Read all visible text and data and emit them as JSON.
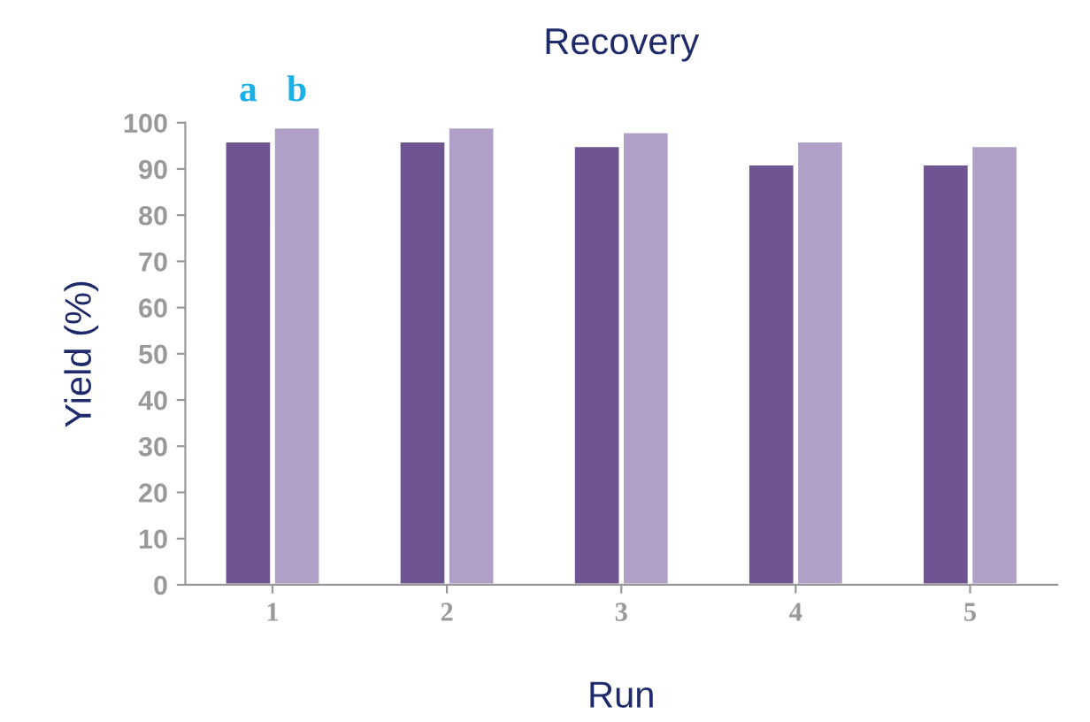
{
  "chart_data": {
    "type": "bar",
    "title": "Recovery",
    "xlabel": "Run",
    "ylabel": "Yield (%)",
    "categories": [
      "1",
      "2",
      "3",
      "4",
      "5"
    ],
    "series": [
      {
        "name": "a",
        "color": "#6e5490",
        "values": [
          96,
          96,
          95,
          91,
          91
        ]
      },
      {
        "name": "b",
        "color": "#b0a0c8",
        "values": [
          99,
          99,
          98,
          96,
          95
        ]
      }
    ],
    "ylim": [
      0,
      100
    ],
    "yticks": [
      0,
      10,
      20,
      30,
      40,
      50,
      60,
      70,
      80,
      90,
      100
    ],
    "grid": false,
    "legend": false
  }
}
